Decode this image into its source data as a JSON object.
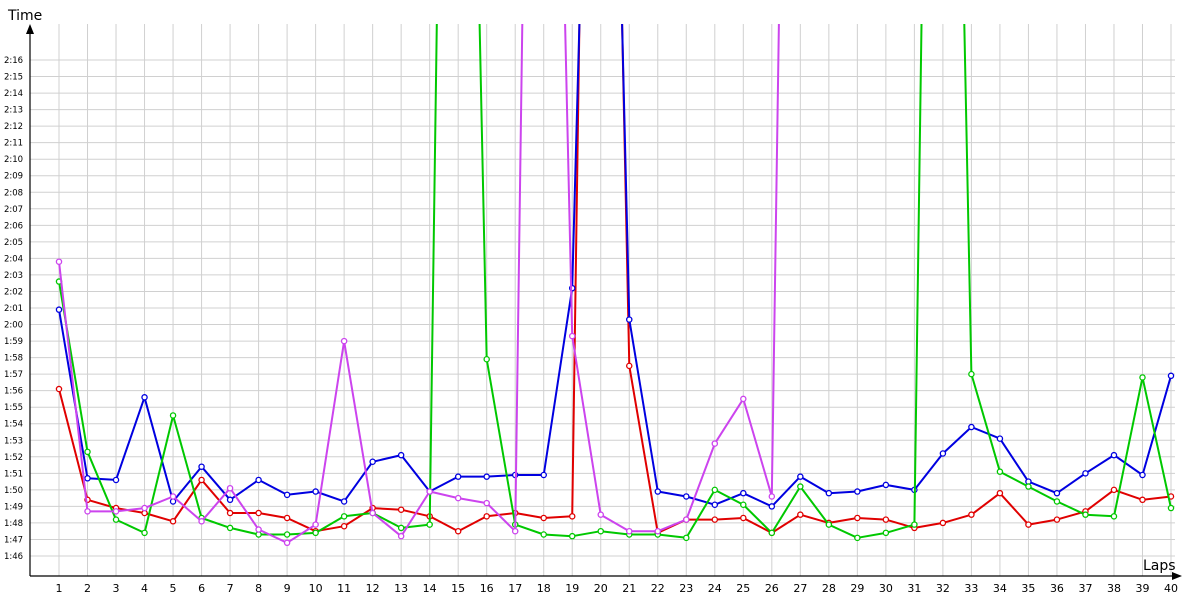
{
  "chart_data": {
    "type": "line",
    "ylabel": "Time",
    "xlabel": "Laps",
    "grid": true,
    "x": [
      1,
      2,
      3,
      4,
      5,
      6,
      7,
      8,
      9,
      10,
      11,
      12,
      13,
      14,
      15,
      16,
      17,
      18,
      19,
      20,
      21,
      22,
      23,
      24,
      25,
      26,
      27,
      28,
      29,
      30,
      31,
      32,
      33,
      34,
      35,
      36,
      37,
      38,
      39,
      40
    ],
    "x_tick_labels": [
      "1",
      "2",
      "3",
      "4",
      "5",
      "6",
      "7",
      "8",
      "9",
      "10",
      "11",
      "12",
      "13",
      "14",
      "15",
      "16",
      "17",
      "18",
      "19",
      "20",
      "21",
      "22",
      "23",
      "24",
      "25",
      "26",
      "27",
      "28",
      "29",
      "30",
      "31",
      "32",
      "33",
      "34",
      "35",
      "36",
      "37",
      "38",
      "39",
      "40"
    ],
    "y_tick_labels": [
      "1:46",
      "1:47",
      "1:48",
      "1:49",
      "1:50",
      "1:51",
      "1:52",
      "1:53",
      "1:54",
      "1:55",
      "1:56",
      "1:57",
      "1:58",
      "1:59",
      "2:00",
      "2:01",
      "2:02",
      "2:03",
      "2:04",
      "2:05",
      "2:06",
      "2:07",
      "2:08",
      "2:09",
      "2:10",
      "2:11",
      "2:12",
      "2:13",
      "2:14",
      "2:15",
      "2:16"
    ],
    "y_unit": "seconds",
    "ylim": [
      105.2,
      137.1
    ],
    "series": [
      {
        "color": "#e00000",
        "values": [
          116.1,
          109.4,
          108.9,
          108.6,
          108.1,
          110.6,
          108.6,
          108.6,
          108.3,
          107.5,
          107.8,
          108.9,
          108.8,
          108.4,
          107.5,
          108.4,
          108.6,
          108.3,
          108.4,
          null,
          117.5,
          107.4,
          108.2,
          108.2,
          108.3,
          107.4,
          108.5,
          108.0,
          108.3,
          108.2,
          107.7,
          108.0,
          108.5,
          109.8,
          107.9,
          108.2,
          108.7,
          110.0,
          109.4,
          109.6
        ]
      },
      {
        "color": "#0000e0",
        "values": [
          120.9,
          110.7,
          110.6,
          115.6,
          109.3,
          111.4,
          109.4,
          110.6,
          109.7,
          109.9,
          109.3,
          111.7,
          112.1,
          109.9,
          110.8,
          110.8,
          110.9,
          110.9,
          122.2,
          null,
          120.3,
          109.9,
          109.6,
          109.1,
          109.8,
          109.0,
          110.8,
          109.8,
          109.9,
          110.3,
          110.0,
          112.2,
          113.8,
          113.1,
          110.5,
          109.8,
          111.0,
          112.1,
          110.9,
          116.9
        ]
      },
      {
        "color": "#00c800",
        "values": [
          122.6,
          112.3,
          108.2,
          107.4,
          114.5,
          108.3,
          107.7,
          107.3,
          107.3,
          107.4,
          108.4,
          108.6,
          107.7,
          107.9,
          null,
          117.9,
          107.9,
          107.3,
          107.2,
          107.5,
          107.3,
          107.3,
          107.1,
          110.0,
          109.1,
          107.4,
          110.2,
          107.9,
          107.1,
          107.4,
          107.9,
          null,
          117.0,
          111.1,
          110.2,
          109.3,
          108.5,
          108.4,
          116.8,
          108.9
        ]
      },
      {
        "color": "#cc44ee",
        "values": [
          123.8,
          108.7,
          108.7,
          108.9,
          109.6,
          108.1,
          110.1,
          107.6,
          106.8,
          107.9,
          119.0,
          108.6,
          107.2,
          109.9,
          109.5,
          109.2,
          107.5,
          null,
          119.3,
          108.5,
          107.5,
          107.5,
          108.2,
          112.8,
          115.5,
          109.6,
          null,
          null,
          null,
          null,
          null,
          null,
          null,
          null,
          null,
          null,
          null,
          null,
          null,
          null
        ]
      }
    ]
  }
}
